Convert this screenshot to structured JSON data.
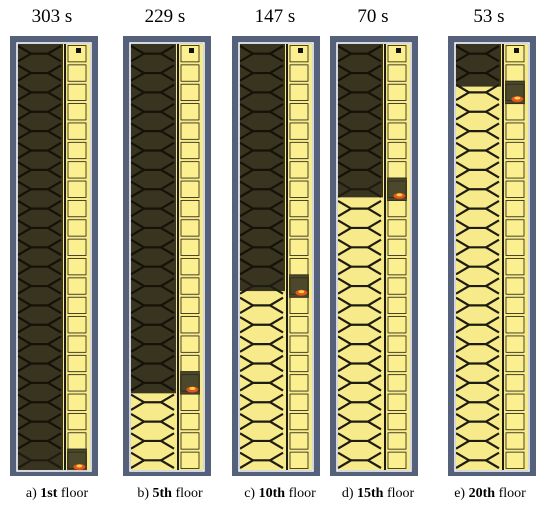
{
  "figure": {
    "panels": [
      {
        "time": "303 s",
        "caption_prefix": "a) ",
        "caption_bold": "1st",
        "caption_suffix": " floor",
        "fire_floor": 1,
        "smoke_free_fraction": 0.0
      },
      {
        "time": "229 s",
        "caption_prefix": "b) ",
        "caption_bold": "5th",
        "caption_suffix": " floor",
        "fire_floor": 5,
        "smoke_free_fraction": 0.18
      },
      {
        "time": "147 s",
        "caption_prefix": "c) ",
        "caption_bold": "10th",
        "caption_suffix": " floor",
        "fire_floor": 10,
        "smoke_free_fraction": 0.42
      },
      {
        "time": "70 s",
        "caption_prefix": "d) ",
        "caption_bold": "15th",
        "caption_suffix": " floor",
        "fire_floor": 15,
        "smoke_free_fraction": 0.64
      },
      {
        "time": "53 s",
        "caption_prefix": "e) ",
        "caption_bold": "20th",
        "caption_suffix": " floor",
        "fire_floor": 20,
        "smoke_free_fraction": 0.9
      }
    ],
    "colors": {
      "frame": "#55607a",
      "smoke": "#2d2a1a",
      "smoke_stair": "#3a3522",
      "clear": "#f7ea8a",
      "clear_stair_cell": "#fbef90",
      "lines_dark": "#1e1c12",
      "fire": "#e8521b",
      "fire_glow": "#ffd24a"
    }
  }
}
